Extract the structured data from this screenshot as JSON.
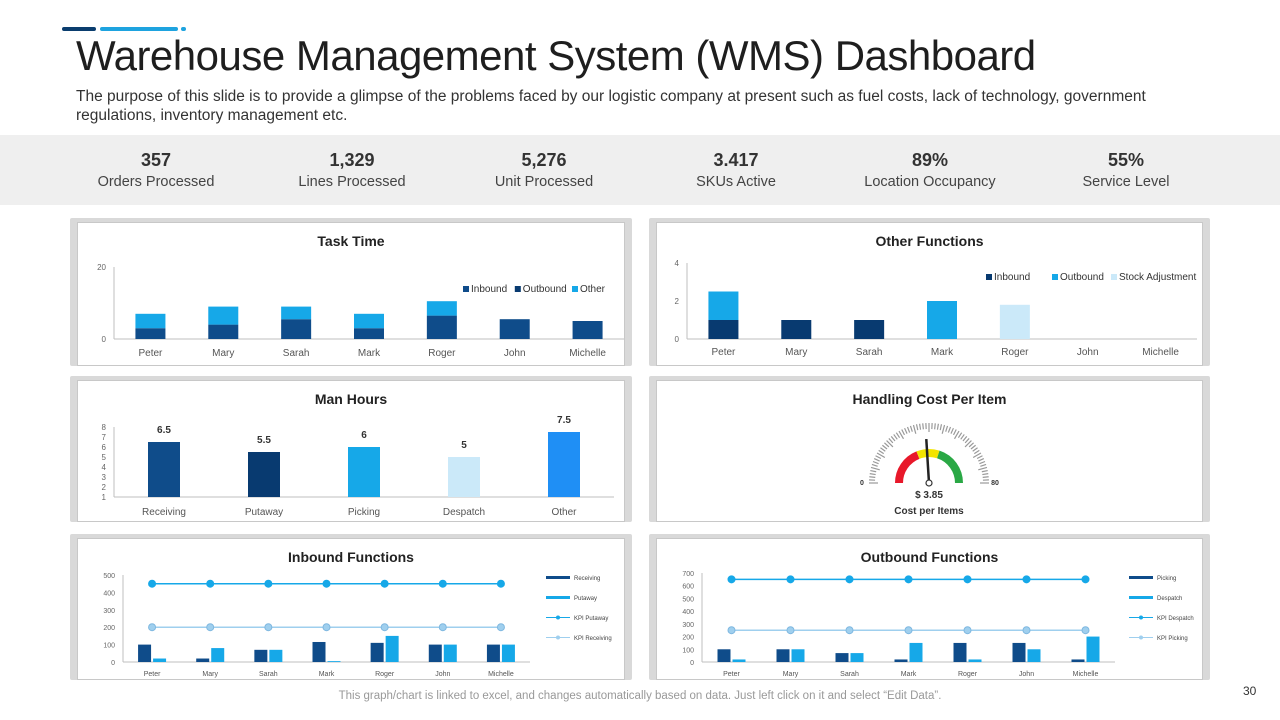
{
  "header": {
    "title": "Warehouse Management System (WMS) Dashboard",
    "subtitle": "The purpose of this slide is to provide a glimpse of the problems faced by our logistic company at present such as fuel costs, lack of technology, government regulations, inventory management etc."
  },
  "colors": {
    "dark_blue": "#0f4c8a",
    "navy": "#083a70",
    "bright_blue": "#16a8e8",
    "pale_blue": "#cbe9f9",
    "accent_dark": "#0a3d6e",
    "accent_light": "#1ea3df"
  },
  "kpis": [
    {
      "value": "357",
      "label": "Orders Processed"
    },
    {
      "value": "1,329",
      "label": "Lines Processed"
    },
    {
      "value": "5,276",
      "label": "Unit Processed"
    },
    {
      "value": "3.417",
      "label": "SKUs Active"
    },
    {
      "value": "89%",
      "label": "Location Occupancy"
    },
    {
      "value": "55%",
      "label": "Service Level"
    }
  ],
  "chart_data": [
    {
      "id": "task_time",
      "type": "bar",
      "stacked": true,
      "title": "Task Time",
      "categories": [
        "Peter",
        "Mary",
        "Sarah",
        "Mark",
        "Roger",
        "John",
        "Michelle"
      ],
      "series": [
        {
          "name": "Inbound",
          "values": [
            3,
            4,
            5.5,
            3,
            6.5,
            5.5,
            5
          ]
        },
        {
          "name": "Outbound",
          "values": [
            0,
            0,
            0,
            0,
            0,
            0,
            0
          ]
        },
        {
          "name": "Other",
          "values": [
            4,
            5,
            3.5,
            4,
            4,
            0,
            0
          ]
        }
      ],
      "ylim": [
        0,
        20
      ],
      "yticks": [
        "0",
        "20"
      ],
      "legend": "top-right"
    },
    {
      "id": "other_functions",
      "type": "bar",
      "title": "Other Functions",
      "categories": [
        "Peter",
        "Mary",
        "Sarah",
        "Mark",
        "Roger",
        "John",
        "Michelle"
      ],
      "series": [
        {
          "name": "Inbound",
          "values": [
            1,
            1,
            1,
            0,
            0,
            0,
            0
          ]
        },
        {
          "name": "Outbound",
          "values": [
            1.5,
            0,
            0,
            2,
            0,
            0,
            0
          ]
        },
        {
          "name": "Stock Adjustment",
          "values": [
            0,
            0,
            0,
            0,
            1.8,
            0,
            0
          ]
        }
      ],
      "ylim": [
        0,
        4
      ],
      "yticks": [
        "0",
        "2",
        "4"
      ],
      "legend": "top-right"
    },
    {
      "id": "man_hours",
      "type": "bar",
      "title": "Man Hours",
      "categories": [
        "Receiving",
        "Putaway",
        "Picking",
        "Despatch",
        "Other"
      ],
      "values": [
        6.5,
        5.5,
        6,
        5,
        7.5
      ],
      "labels": [
        "6.5",
        "5.5",
        "6",
        "5",
        "7.5"
      ],
      "ylim": [
        1,
        8
      ],
      "yticks": [
        "1",
        "2",
        "3",
        "4",
        "5",
        "6",
        "7",
        "8"
      ]
    },
    {
      "id": "handling_cost",
      "type": "gauge",
      "title": "Handling Cost Per Item",
      "min": 0,
      "max": 80,
      "min_label": "0",
      "max_label": "80",
      "value": 3.85,
      "value_label": "$ 3.85",
      "caption": "Cost per Items"
    },
    {
      "id": "inbound_functions",
      "type": "bar",
      "title": "Inbound Functions",
      "categories": [
        "Peter",
        "Mary",
        "Sarah",
        "Mark",
        "Roger",
        "John",
        "Michelle"
      ],
      "series": [
        {
          "name": "Receiving",
          "type": "bar",
          "values": [
            100,
            20,
            70,
            115,
            110,
            100,
            100
          ]
        },
        {
          "name": "Putaway",
          "type": "bar",
          "values": [
            20,
            80,
            70,
            5,
            150,
            100,
            100
          ]
        },
        {
          "name": "KPI Putaway",
          "type": "line",
          "values": [
            450,
            450,
            450,
            450,
            450,
            450,
            450
          ]
        },
        {
          "name": "KPI Receiving",
          "type": "line",
          "values": [
            200,
            200,
            200,
            200,
            200,
            200,
            200
          ]
        }
      ],
      "ylim": [
        0,
        500
      ],
      "yticks": [
        "0",
        "100",
        "200",
        "300",
        "400",
        "500"
      ],
      "legend": "right"
    },
    {
      "id": "outbound_functions",
      "type": "bar",
      "title": "Outbound Functions",
      "categories": [
        "Peter",
        "Mary",
        "Sarah",
        "Mark",
        "Roger",
        "John",
        "Michelle"
      ],
      "series": [
        {
          "name": "Picking",
          "type": "bar",
          "values": [
            100,
            100,
            70,
            20,
            150,
            150,
            20
          ]
        },
        {
          "name": "Despatch",
          "type": "bar",
          "values": [
            20,
            100,
            70,
            150,
            20,
            100,
            200
          ]
        },
        {
          "name": "KPI Despatch",
          "type": "line",
          "values": [
            650,
            650,
            650,
            650,
            650,
            650,
            650
          ]
        },
        {
          "name": "KPI Picking",
          "type": "line",
          "values": [
            250,
            250,
            250,
            250,
            250,
            250,
            250
          ]
        }
      ],
      "ylim": [
        0,
        700
      ],
      "yticks": [
        "0",
        "100",
        "200",
        "300",
        "400",
        "500",
        "600",
        "700"
      ],
      "legend": "right"
    }
  ],
  "footer": {
    "note": "This graph/chart is linked to excel, and changes automatically based on data. Just left click on it and select “Edit Data”.",
    "page_number": "30"
  }
}
